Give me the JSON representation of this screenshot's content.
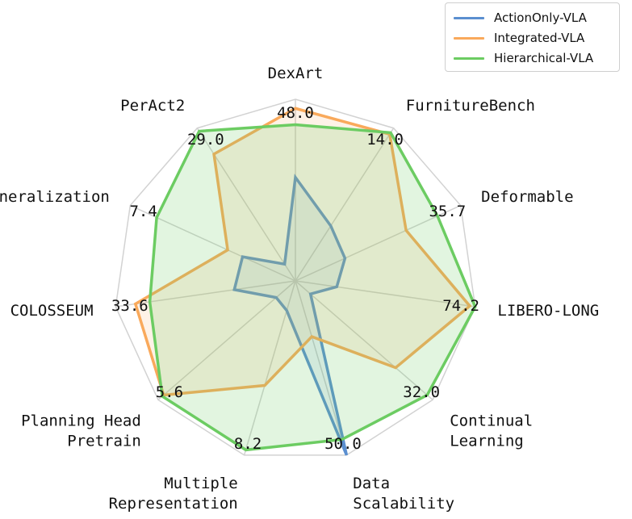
{
  "chart_data": {
    "type": "radar",
    "axes": [
      "DexArt",
      "FurnitureBench",
      "Deformable",
      "LIBERO-LONG",
      "Continual Learning",
      "Data Scalability",
      "Multiple Representation",
      "Planning Head Pretrain",
      "COLOSSEUM",
      "Generalization",
      "PerAct2"
    ],
    "axis_label_lines": [
      [
        "DexArt"
      ],
      [
        "FurnitureBench"
      ],
      [
        "Deformable"
      ],
      [
        "LIBERO-LONG"
      ],
      [
        "Continual",
        "Learning"
      ],
      [
        "Data",
        "Scalability"
      ],
      [
        "Multiple",
        "Representation"
      ],
      [
        "Planning Head",
        "Pretrain"
      ],
      [
        "COLOSSEUM"
      ],
      [
        "Generalization"
      ],
      [
        "PerAct2"
      ]
    ],
    "axis_max_labels": [
      "48.0",
      "14.0",
      "35.7",
      "74.2",
      "32.0",
      "50.0",
      "8.2",
      "5.6",
      "33.6",
      "7.4",
      "29.0"
    ],
    "series": [
      {
        "name": "ActionOnly-VLA",
        "color": "#5b8fd0",
        "fill_opacity": 0.12,
        "values": [
          0.57,
          0.36,
          0.3,
          0.23,
          0.11,
          1.0,
          0.17,
          0.14,
          0.34,
          0.32,
          0.11
        ]
      },
      {
        "name": "Integrated-VLA",
        "color": "#f9a95b",
        "fill_opacity": 0.15,
        "values": [
          0.95,
          0.96,
          0.67,
          0.97,
          0.73,
          0.32,
          0.6,
          0.96,
          0.89,
          0.41,
          0.83
        ]
      },
      {
        "name": "Hierarchical-VLA",
        "color": "#6ccc62",
        "fill_opacity": 0.2,
        "values": [
          0.86,
          0.97,
          0.86,
          1.0,
          0.96,
          0.91,
          0.97,
          0.97,
          0.81,
          0.84,
          0.98
        ]
      }
    ],
    "grid": true,
    "legend_position": "top-right"
  }
}
